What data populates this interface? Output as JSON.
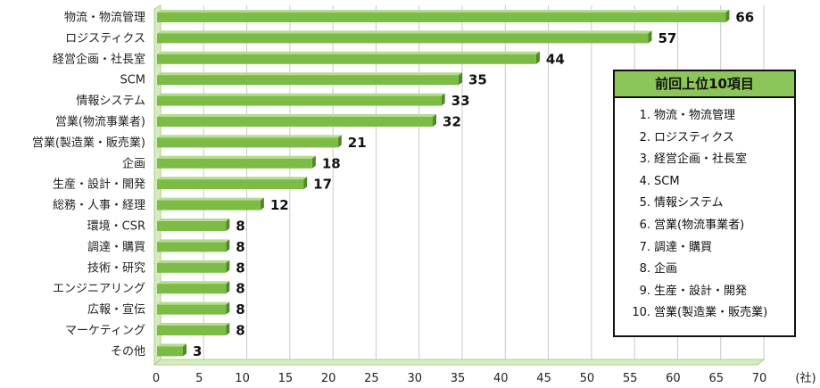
{
  "chart_data": {
    "type": "bar",
    "orientation": "horizontal",
    "categories": [
      "物流・物流管理",
      "ロジスティクス",
      "経営企画・社長室",
      "SCM",
      "情報システム",
      "営業(物流事業者)",
      "営業(製造業・販売業)",
      "企画",
      "生産・設計・開発",
      "総務・人事・経理",
      "環境・CSR",
      "調達・購買",
      "技術・研究",
      "エンジニアリング",
      "広報・宣伝",
      "マーケティング",
      "その他"
    ],
    "values": [
      66,
      57,
      44,
      35,
      33,
      32,
      21,
      18,
      17,
      12,
      8,
      8,
      8,
      8,
      8,
      8,
      3
    ],
    "xlim": [
      0,
      70
    ],
    "xticks": [
      0,
      5,
      10,
      15,
      20,
      25,
      30,
      35,
      40,
      45,
      50,
      55,
      60,
      65,
      70
    ],
    "unit_label": "(社)",
    "grid": "vertical",
    "bar_color": "#7cbb45"
  },
  "legend": {
    "title": "前回上位10項目",
    "items": [
      {
        "num": "1.",
        "text": "物流・物流管理"
      },
      {
        "num": "2.",
        "text": "ロジスティクス"
      },
      {
        "num": "3.",
        "text": "経営企画・社長室"
      },
      {
        "num": "4.",
        "text": "SCM"
      },
      {
        "num": "5.",
        "text": "情報システム"
      },
      {
        "num": "6.",
        "text": "営業(物流事業者)"
      },
      {
        "num": "7.",
        "text": "調達・購買"
      },
      {
        "num": "8.",
        "text": "企画"
      },
      {
        "num": "9.",
        "text": "生産・設計・開発"
      },
      {
        "num": "10.",
        "text": "営業(製造業・販売業)"
      }
    ]
  }
}
